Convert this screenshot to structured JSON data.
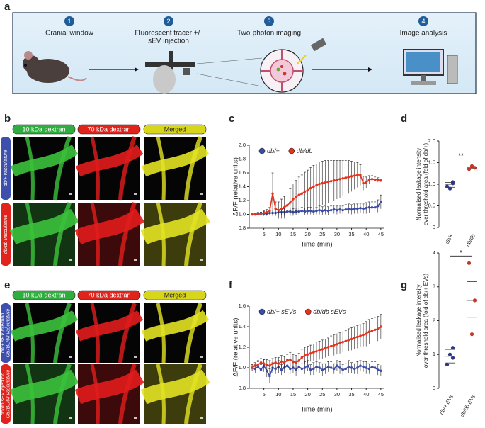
{
  "panel_labels": [
    "a",
    "b",
    "c",
    "d",
    "e",
    "f",
    "g"
  ],
  "workflow": {
    "steps": [
      {
        "number": "1",
        "label": [
          "Cranial window"
        ]
      },
      {
        "number": "2",
        "label": [
          "Fluorescent tracer +/-",
          "sEV injection"
        ]
      },
      {
        "number": "3",
        "label": [
          "Two-photon imaging"
        ]
      },
      {
        "number": "4",
        "label": [
          "Image analysis"
        ]
      }
    ]
  },
  "panel_b": {
    "columns": [
      "10 kDa dextran",
      "70 kDa dextran",
      "Merged"
    ],
    "rows": [
      [
        "db/+ vasculature"
      ],
      [
        "db/db vasculature"
      ]
    ]
  },
  "panel_e": {
    "columns": [
      "10 kDa dextran",
      "70 kDa dextran",
      "Merged"
    ],
    "rows": [
      [
        "db/+ sEV injection",
        "C57BL/6J vasculature"
      ],
      [
        "db/db sEV injection",
        "C57BL/6J vasculature"
      ]
    ]
  },
  "chart_data": [
    {
      "type": "line",
      "xlabel": "Time (min)",
      "ylabel": "ΔF/F (relative units)",
      "xlim": [
        0,
        46
      ],
      "ylim": [
        0.8,
        2.0
      ],
      "xticks": [
        5,
        10,
        15,
        20,
        25,
        30,
        35,
        40,
        45
      ],
      "yticks": [
        0.8,
        {
          "value": 1.0,
          "label": "1.0"
        },
        1.2,
        1.4,
        1.6,
        1.8,
        {
          "value": 2.0,
          "label": "2.0"
        }
      ],
      "x": [
        1,
        2,
        3,
        4,
        5,
        6,
        7,
        8,
        9,
        10,
        11,
        12,
        13,
        14,
        15,
        16,
        17,
        18,
        19,
        20,
        21,
        22,
        23,
        24,
        25,
        26,
        27,
        28,
        29,
        30,
        31,
        32,
        33,
        34,
        35,
        36,
        37,
        38,
        39,
        40,
        41,
        42,
        43,
        44,
        45
      ],
      "series": [
        {
          "name": "db/+",
          "color": "#3b4ba8",
          "values": [
            1.0,
            1.0,
            1.0,
            1.01,
            1.01,
            1.01,
            1.02,
            1.02,
            1.02,
            1.03,
            1.03,
            1.03,
            1.04,
            1.04,
            1.03,
            1.04,
            1.04,
            1.05,
            1.04,
            1.05,
            1.05,
            1.04,
            1.05,
            1.06,
            1.05,
            1.06,
            1.05,
            1.06,
            1.07,
            1.06,
            1.07,
            1.06,
            1.07,
            1.08,
            1.07,
            1.08,
            1.08,
            1.09,
            1.08,
            1.09,
            1.1,
            1.1,
            1.1,
            1.12,
            1.18
          ],
          "errors": [
            0.01,
            0.01,
            0.02,
            0.02,
            0.03,
            0.03,
            0.03,
            0.04,
            0.04,
            0.04,
            0.04,
            0.05,
            0.05,
            0.05,
            0.05,
            0.05,
            0.05,
            0.05,
            0.05,
            0.05,
            0.05,
            0.05,
            0.05,
            0.06,
            0.06,
            0.06,
            0.06,
            0.06,
            0.06,
            0.06,
            0.06,
            0.06,
            0.07,
            0.07,
            0.07,
            0.07,
            0.07,
            0.07,
            0.07,
            0.08,
            0.08,
            0.08,
            0.08,
            0.09,
            0.1
          ]
        },
        {
          "name": "db/db",
          "color": "#e8301c",
          "values": [
            1.0,
            1.0,
            1.01,
            1.01,
            1.02,
            1.03,
            1.05,
            1.3,
            1.08,
            1.06,
            1.08,
            1.1,
            1.13,
            1.17,
            1.22,
            1.25,
            1.28,
            1.3,
            1.33,
            1.35,
            1.38,
            1.4,
            1.42,
            1.44,
            1.45,
            1.46,
            1.47,
            1.48,
            1.49,
            1.5,
            1.51,
            1.52,
            1.53,
            1.54,
            1.55,
            1.56,
            1.57,
            1.57,
            1.45,
            1.46,
            1.5,
            1.51,
            1.5,
            1.5,
            1.49
          ],
          "errors": [
            0.01,
            0.01,
            0.02,
            0.02,
            0.03,
            0.04,
            0.05,
            0.3,
            0.1,
            0.12,
            0.14,
            0.16,
            0.18,
            0.2,
            0.22,
            0.24,
            0.26,
            0.27,
            0.28,
            0.29,
            0.3,
            0.31,
            0.31,
            0.32,
            0.32,
            0.32,
            0.31,
            0.3,
            0.29,
            0.28,
            0.27,
            0.26,
            0.25,
            0.24,
            0.22,
            0.2,
            0.18,
            0.15,
            0.1,
            0.08,
            0.06,
            0.05,
            0.04,
            0.03,
            0.02
          ]
        }
      ]
    },
    {
      "type": "box",
      "ylabel": [
        "Normalised leakage intensity",
        "over threshold area (fold of db/+)"
      ],
      "categories": [
        "db/+",
        "db/db"
      ],
      "ylim": [
        0,
        2
      ],
      "yticks": [
        0,
        0.5,
        {
          "value": 1.0,
          "label": "1.0"
        },
        1.5,
        {
          "value": 2.0,
          "label": "2.0"
        }
      ],
      "significance": "**",
      "boxes": [
        {
          "color": "#2e3a87",
          "min": 0.9,
          "q1": 0.93,
          "median": 1.0,
          "q3": 1.04,
          "max": 1.05,
          "points": [
            0.95,
            1.05,
            0.9,
            1.02
          ]
        },
        {
          "color": "#c0392b",
          "min": 1.35,
          "q1": 1.36,
          "median": 1.38,
          "q3": 1.4,
          "max": 1.42,
          "points": [
            1.35,
            1.38,
            1.42
          ]
        }
      ]
    },
    {
      "type": "line",
      "xlabel": "Time (min)",
      "ylabel": "ΔF/F (relative units)",
      "xlim": [
        0,
        46
      ],
      "ylim": [
        0.8,
        1.6
      ],
      "xticks": [
        5,
        10,
        15,
        20,
        25,
        30,
        35,
        40,
        45
      ],
      "yticks": [
        0.8,
        {
          "value": 1.0,
          "label": "1.0"
        },
        1.2,
        1.4,
        1.6
      ],
      "x": [
        1,
        2,
        3,
        4,
        5,
        6,
        7,
        8,
        9,
        10,
        11,
        12,
        13,
        14,
        15,
        16,
        17,
        18,
        19,
        20,
        21,
        22,
        23,
        24,
        25,
        26,
        27,
        28,
        29,
        30,
        31,
        32,
        33,
        34,
        35,
        36,
        37,
        38,
        39,
        40,
        41,
        42,
        43,
        44,
        45
      ],
      "series": [
        {
          "name": "db/+ sEVs",
          "color": "#3b4ba8",
          "values": [
            1.0,
            0.99,
            1.01,
            0.98,
            1.02,
            0.97,
            0.92,
            1.0,
            0.99,
            1.01,
            0.98,
            1.0,
            1.02,
            0.99,
            1.0,
            0.98,
            1.01,
            0.99,
            1.0,
            1.02,
            0.98,
            0.99,
            1.01,
            1.0,
            0.98,
            0.99,
            1.01,
            1.0,
            0.99,
            1.02,
            1.0,
            0.98,
            0.99,
            1.01,
            1.0,
            0.99,
            1.0,
            1.02,
            1.01,
            1.0,
            0.99,
            1.01,
            1.0,
            0.98,
            0.97
          ],
          "errors": [
            0.03,
            0.04,
            0.05,
            0.05,
            0.06,
            0.06,
            0.07,
            0.05,
            0.05,
            0.06,
            0.05,
            0.05,
            0.06,
            0.05,
            0.05,
            0.06,
            0.05,
            0.05,
            0.06,
            0.05,
            0.05,
            0.06,
            0.05,
            0.05,
            0.06,
            0.05,
            0.05,
            0.06,
            0.05,
            0.05,
            0.06,
            0.05,
            0.05,
            0.06,
            0.05,
            0.05,
            0.06,
            0.05,
            0.05,
            0.06,
            0.05,
            0.05,
            0.06,
            0.05,
            0.05
          ]
        },
        {
          "name": "db/db sEVs",
          "color": "#e8301c",
          "values": [
            1.0,
            1.02,
            1.03,
            1.05,
            1.04,
            1.03,
            1.02,
            1.04,
            1.05,
            1.04,
            1.06,
            1.05,
            1.07,
            1.08,
            1.06,
            1.05,
            1.07,
            1.1,
            1.12,
            1.13,
            1.14,
            1.15,
            1.16,
            1.17,
            1.18,
            1.19,
            1.2,
            1.21,
            1.22,
            1.23,
            1.24,
            1.25,
            1.26,
            1.27,
            1.28,
            1.29,
            1.3,
            1.31,
            1.32,
            1.33,
            1.35,
            1.36,
            1.37,
            1.38,
            1.4
          ],
          "errors": [
            0.03,
            0.03,
            0.04,
            0.04,
            0.04,
            0.05,
            0.05,
            0.05,
            0.05,
            0.06,
            0.06,
            0.06,
            0.06,
            0.07,
            0.07,
            0.07,
            0.07,
            0.08,
            0.08,
            0.08,
            0.08,
            0.08,
            0.09,
            0.09,
            0.09,
            0.09,
            0.09,
            0.1,
            0.1,
            0.1,
            0.1,
            0.1,
            0.1,
            0.11,
            0.11,
            0.11,
            0.11,
            0.11,
            0.11,
            0.12,
            0.12,
            0.12,
            0.12,
            0.12,
            0.12
          ]
        }
      ]
    },
    {
      "type": "box",
      "ylabel": [
        "Normalised leakage intensity",
        "over threshold area (fold of db/+ EVs)"
      ],
      "categories": [
        "db/+ EVs",
        "db/db EVs"
      ],
      "ylim": [
        0,
        4
      ],
      "yticks": [
        0,
        1,
        2,
        3,
        4
      ],
      "significance": "*",
      "boxes": [
        {
          "color": "#2e3a87",
          "min": 0.7,
          "q1": 0.75,
          "median": 0.95,
          "q3": 1.15,
          "max": 1.2,
          "points": [
            0.7,
            0.9,
            1.0,
            1.2
          ]
        },
        {
          "color": "#c0392b",
          "min": 1.6,
          "q1": 2.1,
          "median": 2.6,
          "q3": 3.15,
          "max": 3.7,
          "points": [
            3.7,
            2.6,
            1.6
          ]
        }
      ]
    }
  ]
}
